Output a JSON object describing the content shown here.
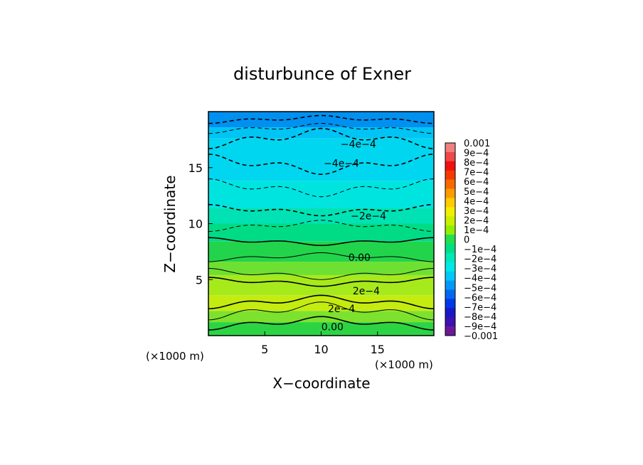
{
  "chart_data": {
    "type": "heatmap",
    "title": "disturbunce of Exner",
    "xlabel": "X−coordinate",
    "ylabel": "Z−coordinate",
    "x_unit_left": "(×1000 m)",
    "x_unit_right": "(×1000 m)",
    "xlim": [
      0,
      20
    ],
    "ylim": [
      0,
      20
    ],
    "x_ticks": [
      5,
      10,
      15
    ],
    "y_ticks": [
      5,
      10,
      15
    ],
    "contour_labels": [
      {
        "text": "−4e−4",
        "x": 13.3,
        "z": 17.1
      },
      {
        "text": "−4e−4",
        "x": 11.8,
        "z": 15.4
      },
      {
        "text": "−2e−4",
        "x": 14.2,
        "z": 10.7
      },
      {
        "text": "0.00",
        "x": 13.4,
        "z": 7.0
      },
      {
        "text": "2e−4",
        "x": 14.0,
        "z": 4.0
      },
      {
        "text": "2e−4",
        "x": 11.8,
        "z": 2.4
      },
      {
        "text": "0.00",
        "x": 11.0,
        "z": 0.8
      }
    ],
    "colorbar": {
      "labels": [
        "0.001",
        "9e−4",
        "8e−4",
        "7e−4",
        "6e−4",
        "5e−4",
        "4e−4",
        "3e−4",
        "2e−4",
        "1e−4",
        "0",
        "−1e−4",
        "−2e−4",
        "−3e−4",
        "−4e−4",
        "−5e−4",
        "−6e−4",
        "−7e−4",
        "−8e−4",
        "−9e−4",
        "−0.001"
      ],
      "colors": [
        "#f08080",
        "#f04848",
        "#f01010",
        "#f43a00",
        "#f86a00",
        "#fc9c00",
        "#ffcc00",
        "#f0f000",
        "#c8f000",
        "#90f000",
        "#22e050",
        "#00e080",
        "#00e8b8",
        "#00e8e8",
        "#00c8f8",
        "#0098f8",
        "#0068f0",
        "#0038e8",
        "#1818c8",
        "#4010b0",
        "#6a1898"
      ]
    },
    "bands": [
      {
        "z0": 18.6,
        "z1": 20.0,
        "color": "#0090f0"
      },
      {
        "z0": 17.6,
        "z1": 18.6,
        "color": "#00c4f4"
      },
      {
        "z0": 13.8,
        "z1": 17.6,
        "color": "#00d6f0"
      },
      {
        "z0": 11.4,
        "z1": 13.8,
        "color": "#00e4e0"
      },
      {
        "z0": 10.0,
        "z1": 11.4,
        "color": "#00e2b4"
      },
      {
        "z0": 8.4,
        "z1": 10.0,
        "color": "#00dc86"
      },
      {
        "z0": 6.6,
        "z1": 8.4,
        "color": "#22d44c"
      },
      {
        "z0": 5.4,
        "z1": 6.6,
        "color": "#6ee032"
      },
      {
        "z0": 3.6,
        "z1": 5.4,
        "color": "#a6ea1c"
      },
      {
        "z0": 2.2,
        "z1": 3.6,
        "color": "#c4ec10"
      },
      {
        "z0": 1.2,
        "z1": 2.2,
        "color": "#7ce22e"
      },
      {
        "z0": 0.0,
        "z1": 1.2,
        "color": "#2cd444"
      }
    ],
    "contours": [
      {
        "z": 19.3,
        "amp": 0.35,
        "style": "dashed",
        "width": 1.6
      },
      {
        "z": 18.5,
        "amp": 0.45,
        "style": "dashed",
        "width": 1.0
      },
      {
        "z": 17.6,
        "amp": 0.9,
        "style": "dashed",
        "width": 1.6
      },
      {
        "z": 15.3,
        "amp": -0.9,
        "style": "dashed",
        "width": 1.6
      },
      {
        "z": 13.2,
        "amp": -0.8,
        "style": "dashed",
        "width": 1.0
      },
      {
        "z": 11.2,
        "amp": -0.5,
        "style": "dashed",
        "width": 1.6
      },
      {
        "z": 9.8,
        "amp": 0.5,
        "style": "dashed",
        "width": 1.0
      },
      {
        "z": 8.4,
        "amp": -0.35,
        "style": "solid",
        "width": 1.6
      },
      {
        "z": 7.0,
        "amp": 0.4,
        "style": "solid",
        "width": 1.0
      },
      {
        "z": 5.5,
        "amp": -0.5,
        "style": "solid",
        "width": 1.0
      },
      {
        "z": 4.8,
        "amp": -0.4,
        "style": "solid",
        "width": 1.6
      },
      {
        "z": 3.0,
        "amp": 0.6,
        "style": "solid",
        "width": 1.6
      },
      {
        "z": 2.2,
        "amp": 0.8,
        "style": "solid",
        "width": 1.0
      },
      {
        "z": 1.1,
        "amp": 0.6,
        "style": "solid",
        "width": 1.6
      }
    ]
  }
}
